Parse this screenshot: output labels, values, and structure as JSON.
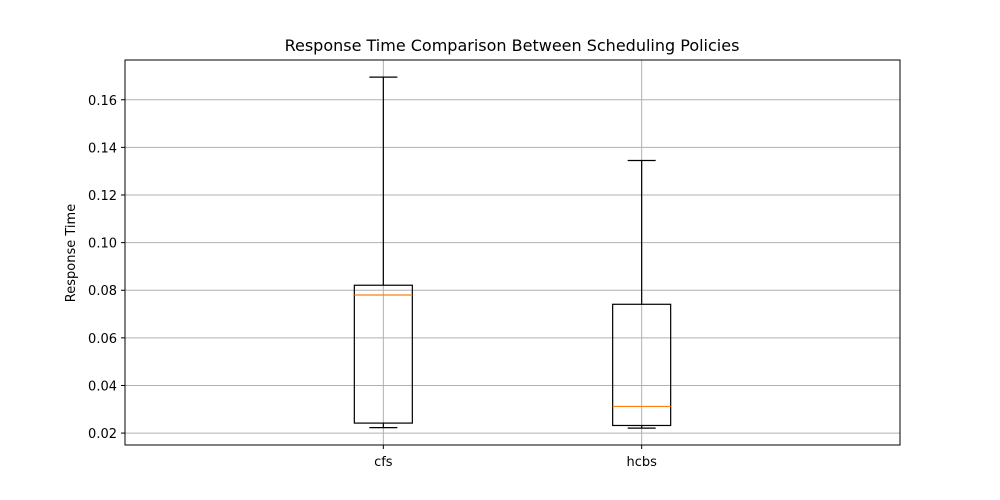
{
  "chart_data": {
    "type": "boxplot",
    "title": "Response Time Comparison Between Scheduling Policies",
    "xlabel": "",
    "ylabel": "Response Time",
    "categories": [
      "cfs",
      "hcbs"
    ],
    "boxes": [
      {
        "label": "cfs",
        "whisker_low": 0.0223,
        "q1": 0.0242,
        "median": 0.078,
        "q3": 0.0821,
        "whisker_high": 0.1695
      },
      {
        "label": "hcbs",
        "whisker_low": 0.0221,
        "q1": 0.0232,
        "median": 0.0312,
        "q3": 0.0741,
        "whisker_high": 0.1345
      }
    ],
    "ylim": [
      0.015,
      0.1767
    ],
    "yticks": [
      "0.02",
      "0.04",
      "0.06",
      "0.08",
      "0.10",
      "0.12",
      "0.14",
      "0.16"
    ],
    "grid": true,
    "colors": {
      "box": "#000000",
      "median": "#ff7f0e",
      "grid": "#b0b0b0"
    }
  }
}
